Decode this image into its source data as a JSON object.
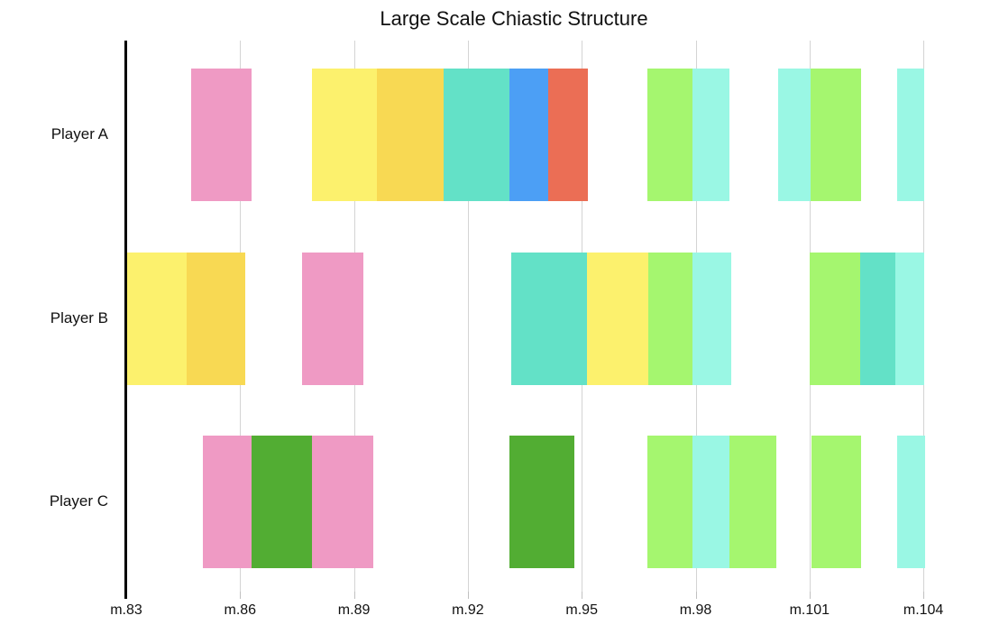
{
  "chart_data": {
    "type": "bar",
    "subtype": "horizontal-gantt-timeline",
    "title": "Large Scale Chiastic Structure",
    "legend": "none",
    "x_axis": {
      "unit": "measure",
      "tick_values": [
        83,
        86,
        89,
        92,
        95,
        98,
        101,
        104
      ],
      "tick_labels": [
        "m.83",
        "m.86",
        "m.89",
        "m.92",
        "m.95",
        "m.98",
        "m.101",
        "m.104"
      ],
      "range": [
        83,
        104.85
      ],
      "gridlines": true
    },
    "y_axis": {
      "categories": [
        "Player A",
        "Player B",
        "Player C"
      ]
    },
    "palette": {
      "pink": "#EF9AC4",
      "yellow": "#FCF16D",
      "gold": "#F8D953",
      "teal": "#63E1C7",
      "blue": "#4C9FF5",
      "red": "#EB6E55",
      "lightgreen": "#A5F66F",
      "aqua": "#9AF7E4",
      "darkgreen": "#52AD33"
    },
    "series": [
      {
        "name": "Player A",
        "segments": [
          {
            "start": 84.7,
            "end": 86.31,
            "color": "pink"
          },
          {
            "start": 87.89,
            "end": 89.61,
            "color": "yellow"
          },
          {
            "start": 89.61,
            "end": 91.35,
            "color": "gold"
          },
          {
            "start": 91.35,
            "end": 93.1,
            "color": "teal"
          },
          {
            "start": 93.1,
            "end": 94.11,
            "color": "blue"
          },
          {
            "start": 94.11,
            "end": 95.16,
            "color": "red"
          },
          {
            "start": 96.73,
            "end": 97.91,
            "color": "lightgreen"
          },
          {
            "start": 97.91,
            "end": 98.9,
            "color": "aqua"
          },
          {
            "start": 100.17,
            "end": 101.03,
            "color": "aqua"
          },
          {
            "start": 101.03,
            "end": 102.36,
            "color": "lightgreen"
          },
          {
            "start": 103.31,
            "end": 104.03,
            "color": "aqua"
          }
        ]
      },
      {
        "name": "Player B",
        "segments": [
          {
            "start": 83.0,
            "end": 84.6,
            "color": "yellow"
          },
          {
            "start": 84.6,
            "end": 86.13,
            "color": "gold"
          },
          {
            "start": 87.63,
            "end": 89.25,
            "color": "pink"
          },
          {
            "start": 93.13,
            "end": 95.14,
            "color": "teal"
          },
          {
            "start": 95.14,
            "end": 96.76,
            "color": "yellow"
          },
          {
            "start": 96.76,
            "end": 97.92,
            "color": "lightgreen"
          },
          {
            "start": 97.92,
            "end": 98.95,
            "color": "aqua"
          },
          {
            "start": 101.0,
            "end": 102.33,
            "color": "lightgreen"
          },
          {
            "start": 102.33,
            "end": 103.27,
            "color": "teal"
          },
          {
            "start": 103.27,
            "end": 104.02,
            "color": "aqua"
          }
        ]
      },
      {
        "name": "Player C",
        "segments": [
          {
            "start": 85.02,
            "end": 86.31,
            "color": "pink"
          },
          {
            "start": 86.31,
            "end": 87.89,
            "color": "darkgreen"
          },
          {
            "start": 87.89,
            "end": 89.51,
            "color": "pink"
          },
          {
            "start": 93.1,
            "end": 94.8,
            "color": "darkgreen"
          },
          {
            "start": 96.73,
            "end": 97.91,
            "color": "lightgreen"
          },
          {
            "start": 97.91,
            "end": 98.9,
            "color": "aqua"
          },
          {
            "start": 98.9,
            "end": 100.12,
            "color": "lightgreen"
          },
          {
            "start": 101.05,
            "end": 102.36,
            "color": "lightgreen"
          },
          {
            "start": 103.31,
            "end": 104.05,
            "color": "aqua"
          }
        ]
      }
    ]
  },
  "colors": {
    "background": "#ffffff",
    "axis_line": "#000000",
    "gridline": "#d4d4d4",
    "tick_mark": "#c0c0c0",
    "text": "#111111"
  }
}
